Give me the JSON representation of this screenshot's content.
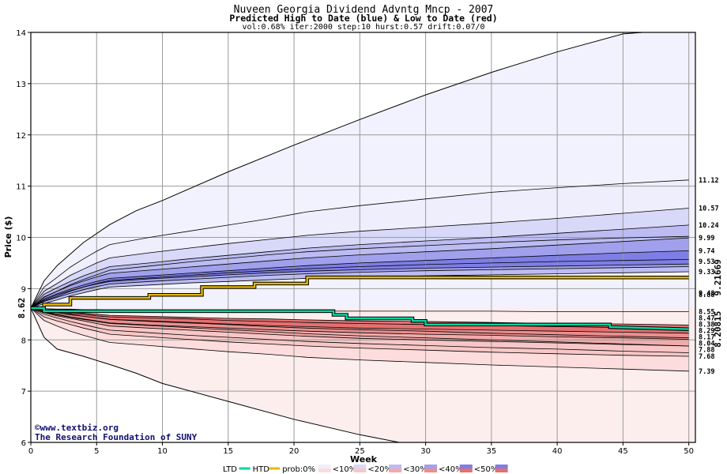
{
  "chart_data": {
    "type": "area",
    "title": "Nuveen Georgia Dividend Advntg Mncp - 2007",
    "subtitle": "Predicted High to Date (blue) &  Low to Date (red)",
    "params": "vol:0.68% iter:2000 step:10 hurst:0.57 drift:0.07/0",
    "xlabel": "Week",
    "ylabel": "Price ($)",
    "xlim": [
      0,
      50.5
    ],
    "ylim": [
      6,
      14
    ],
    "xticks": [
      "0",
      "5",
      "10",
      "15",
      "20",
      "25",
      "30",
      "35",
      "40",
      "45",
      "50"
    ],
    "yticks": [
      "6",
      "7",
      "8",
      "9",
      "10",
      "11",
      "12",
      "13",
      "14"
    ],
    "grid": true,
    "start_price": 8.62,
    "start_price_label": "8.62",
    "high_end_labels": [
      "11.12",
      "10.57",
      "10.24",
      "9.99",
      "9.74",
      "9.53",
      "9.33",
      "9.48",
      "8.88"
    ],
    "low_end_labels": [
      "8.55",
      "8.47",
      "8.38",
      "8.29",
      "8.17",
      "8.04",
      "7.88",
      "7.68",
      "7.39"
    ],
    "high_envelope": {
      "x": [
        0,
        1,
        2,
        4,
        6,
        8,
        10,
        15,
        20,
        25,
        30,
        35,
        40,
        45,
        46.5
      ],
      "y": [
        8.62,
        9.15,
        9.45,
        9.9,
        10.25,
        10.52,
        10.72,
        11.28,
        11.8,
        12.3,
        12.78,
        13.22,
        13.62,
        13.97,
        14.0
      ]
    },
    "low_envelope": {
      "x": [
        0,
        1,
        2,
        4,
        6,
        8,
        10,
        15,
        20,
        25,
        28
      ],
      "y": [
        8.62,
        8.05,
        7.82,
        7.68,
        7.52,
        7.35,
        7.15,
        6.8,
        6.45,
        6.15,
        6.0
      ]
    },
    "high_bands": [
      {
        "name": "<10%",
        "color": "#eeeefd",
        "upper": [
          8.62,
          9.03,
          9.22,
          9.42,
          9.58,
          9.73,
          9.86,
          10.0,
          10.12,
          10.24,
          10.36,
          10.5,
          10.62,
          10.75,
          10.88,
          10.97,
          11.05,
          11.12
        ],
        "lower": [
          8.62,
          8.83,
          8.95,
          9.08,
          9.18,
          9.27,
          9.36,
          9.44,
          9.52,
          9.59,
          9.66,
          9.72,
          9.78,
          9.84,
          9.9,
          9.95,
          9.99,
          10.02
        ]
      },
      {
        "name": "<20%",
        "color": "#d8d8f8",
        "upper": [
          8.62,
          8.95,
          9.1,
          9.26,
          9.38,
          9.5,
          9.6,
          9.7,
          9.79,
          9.88,
          9.96,
          10.04,
          10.12,
          10.2,
          10.28,
          10.37,
          10.47,
          10.57
        ],
        "lower": [
          8.62,
          8.76,
          8.85,
          8.95,
          9.03,
          9.1,
          9.16,
          9.21,
          9.26,
          9.31,
          9.35,
          9.39,
          9.43,
          9.47,
          9.5,
          9.53,
          9.55,
          9.57
        ]
      },
      {
        "name": "<30%",
        "color": "#bcbcf2",
        "upper": [
          8.62,
          8.89,
          9.02,
          9.14,
          9.25,
          9.34,
          9.43,
          9.5,
          9.58,
          9.65,
          9.72,
          9.79,
          9.86,
          9.93,
          10.0,
          10.08,
          10.16,
          10.24
        ],
        "lower": [
          8.62,
          8.71,
          8.78,
          8.86,
          8.92,
          8.98,
          9.03,
          9.07,
          9.11,
          9.14,
          9.17,
          9.2,
          9.22,
          9.25,
          9.27,
          9.29,
          9.31,
          9.33
        ]
      },
      {
        "name": "<40%",
        "color": "#a0a0ec",
        "upper": [
          8.62,
          8.84,
          8.95,
          9.06,
          9.15,
          9.23,
          9.3,
          9.36,
          9.42,
          9.48,
          9.54,
          9.6,
          9.66,
          9.72,
          9.78,
          9.85,
          9.92,
          9.99
        ],
        "lower": [
          8.62,
          8.75,
          8.83,
          8.91,
          8.98,
          9.04,
          9.09,
          9.14,
          9.18,
          9.22,
          9.26,
          9.29,
          9.32,
          9.35,
          9.37,
          9.39,
          9.41,
          9.43
        ]
      },
      {
        "name": "<50%",
        "color": "#7e7ee6",
        "upper": [
          8.62,
          8.8,
          8.9,
          8.99,
          9.07,
          9.14,
          9.2,
          9.25,
          9.3,
          9.35,
          9.4,
          9.45,
          9.5,
          9.55,
          9.6,
          9.65,
          9.7,
          9.74
        ],
        "lower": [
          8.62,
          8.78,
          8.88,
          8.96,
          9.03,
          9.09,
          9.14,
          9.19,
          9.23,
          9.27,
          9.31,
          9.34,
          9.37,
          9.4,
          9.42,
          9.44,
          9.46,
          9.48
        ]
      }
    ],
    "low_bands": [
      {
        "name": "<10%",
        "color": "#fcdcdc",
        "upper": [
          8.62,
          8.5,
          8.43,
          8.36,
          8.3,
          8.24,
          8.19,
          8.14,
          8.09,
          8.05,
          8.01,
          7.97,
          7.93,
          7.89,
          7.85,
          7.82,
          7.78,
          7.75
        ],
        "lower": [
          8.62,
          8.38,
          8.27,
          8.17,
          8.09,
          8.02,
          7.95,
          7.89,
          7.83,
          7.77,
          7.72,
          7.66,
          7.61,
          7.56,
          7.51,
          7.47,
          7.43,
          7.39
        ]
      },
      {
        "name": "<20%",
        "color": "#f8c6c6",
        "upper": [
          8.62,
          8.54,
          8.49,
          8.44,
          8.4,
          8.36,
          8.32,
          8.28,
          8.24,
          8.2,
          8.16,
          8.12,
          8.08,
          8.04,
          8.0,
          7.96,
          7.92,
          7.88
        ],
        "lower": [
          8.62,
          8.45,
          8.37,
          8.3,
          8.23,
          8.17,
          8.11,
          8.06,
          8.01,
          7.96,
          7.92,
          7.88,
          7.84,
          7.8,
          7.76,
          7.73,
          7.7,
          7.68
        ]
      },
      {
        "name": "<30%",
        "color": "#f2aaaa",
        "upper": [
          8.62,
          8.57,
          8.53,
          8.5,
          8.46,
          8.43,
          8.4,
          8.36,
          8.33,
          8.3,
          8.26,
          8.23,
          8.2,
          8.17,
          8.13,
          8.1,
          8.07,
          8.04
        ],
        "lower": [
          8.62,
          8.53,
          8.47,
          8.42,
          8.37,
          8.32,
          8.27,
          8.23,
          8.19,
          8.15,
          8.11,
          8.07,
          8.03,
          8.0,
          7.97,
          7.94,
          7.91,
          7.88
        ]
      },
      {
        "name": "<40%",
        "color": "#ec8e8e",
        "upper": [
          8.62,
          8.58,
          8.55,
          8.52,
          8.5,
          8.47,
          8.45,
          8.43,
          8.41,
          8.38,
          8.36,
          8.34,
          8.32,
          8.3,
          8.28,
          8.26,
          8.24,
          8.22
        ],
        "lower": [
          8.62,
          8.55,
          8.5,
          8.45,
          8.41,
          8.37,
          8.33,
          8.29,
          8.26,
          8.23,
          8.2,
          8.17,
          8.14,
          8.11,
          8.09,
          8.06,
          8.04,
          8.01
        ]
      },
      {
        "name": "<50%",
        "color": "#e67070",
        "upper": [
          8.62,
          8.59,
          8.56,
          8.54,
          8.52,
          8.5,
          8.48,
          8.46,
          8.44,
          8.42,
          8.41,
          8.39,
          8.37,
          8.36,
          8.34,
          8.32,
          8.31,
          8.29
        ],
        "lower": [
          8.62,
          8.57,
          8.53,
          8.49,
          8.46,
          8.43,
          8.4,
          8.37,
          8.34,
          8.31,
          8.28,
          8.26,
          8.23,
          8.21,
          8.19,
          8.17,
          8.15,
          8.13
        ]
      }
    ],
    "upper_band_line": [
      8.62,
      8.61,
      8.6,
      8.6,
      8.59,
      8.59,
      8.58,
      8.58,
      8.57,
      8.57,
      8.57,
      8.56,
      8.56,
      8.56,
      8.56,
      8.55,
      8.55,
      8.55
    ],
    "band_x": [
      0,
      1,
      2,
      3,
      4,
      5,
      6,
      9,
      12,
      15,
      18,
      21,
      25,
      30,
      35,
      40,
      45,
      50
    ],
    "htd_series": {
      "name": "HTD",
      "color": "#e8b800",
      "x": [
        0,
        1,
        1,
        3,
        3,
        9,
        9,
        13,
        13,
        17,
        17,
        21,
        21,
        50
      ],
      "y": [
        8.62,
        8.62,
        8.69,
        8.69,
        8.82,
        8.82,
        8.88,
        8.88,
        9.03,
        9.03,
        9.1,
        9.1,
        9.22,
        9.2167
      ]
    },
    "ltd_series": {
      "name": "LTD",
      "color": "#00d8a0",
      "x": [
        0,
        1,
        1,
        23,
        23,
        24,
        24,
        29,
        29,
        30,
        30,
        44,
        44,
        50
      ],
      "y": [
        8.62,
        8.62,
        8.56,
        8.56,
        8.49,
        8.49,
        8.42,
        8.42,
        8.37,
        8.37,
        8.3,
        8.3,
        8.25,
        8.2082
      ]
    },
    "htd_final_label": "9.21669",
    "ltd_final_label": "8.20815",
    "legend_items": [
      "LTD",
      "HTD",
      "prob:0%",
      "<10%",
      "<20%",
      "<30%",
      "<40%",
      "<50%"
    ],
    "colors": {
      "blue_outer": "#f2f2fe",
      "red_outer": "#fdeeee",
      "htd_label": "#9a7a00",
      "ltd_label": "#008a40",
      "start_label": "#008a40",
      "credit": "#101070"
    }
  },
  "credit": {
    "copyright": "©www.textbiz.org",
    "org": "The Research Foundation of SUNY"
  }
}
